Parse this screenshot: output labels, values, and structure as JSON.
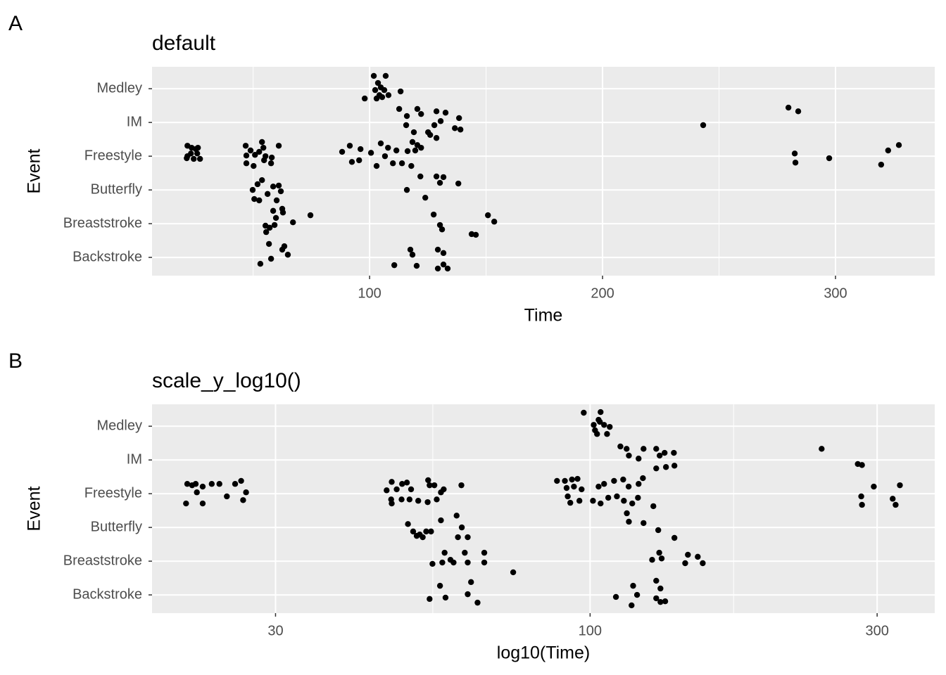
{
  "chart_data": [
    {
      "type": "scatter",
      "tag": "A",
      "title": "default",
      "x_label": "Time",
      "y_label": "Event",
      "log_x": false,
      "grid": true,
      "color": "#000000",
      "xlim": [
        6.6,
        342.6
      ],
      "xticks": [
        100,
        200,
        300
      ],
      "xminor": [
        50,
        150,
        250
      ],
      "ylim": [
        0.46,
        6.65
      ],
      "yticks": [
        {
          "value": 1,
          "label": "Backstroke"
        },
        {
          "value": 2,
          "label": "Breaststroke"
        },
        {
          "value": 3,
          "label": "Butterfly"
        },
        {
          "value": 4,
          "label": "Freestyle"
        },
        {
          "value": 5,
          "label": "IM"
        },
        {
          "value": 6,
          "label": "Medley"
        }
      ],
      "x": [
        101.8,
        106.9,
        103.6,
        104.8,
        102.4,
        106.3,
        104.2,
        108.1,
        113.3,
        97.9,
        103.0,
        105.4,
        112.7,
        120.5,
        128.7,
        132.6,
        116.0,
        122.1,
        138.4,
        115.7,
        127.8,
        130.5,
        119.0,
        125.1,
        136.6,
        139.0,
        243.2,
        279.8,
        284.0,
        21.8,
        23.6,
        25.4,
        21.8,
        23.3,
        26.0,
        27.2,
        24.5,
        21.5,
        26.3,
        46.8,
        48.9,
        53.8,
        54.4,
        61.0,
        47.1,
        50.8,
        55.3,
        47.1,
        50.2,
        54.7,
        57.7,
        58.0,
        52.6,
        88.2,
        91.5,
        96.1,
        100.6,
        104.8,
        107.9,
        111.5,
        116.3,
        118.4,
        120.5,
        122.1,
        92.4,
        95.5,
        103.0,
        106.6,
        110.0,
        113.9,
        117.9,
        119.6,
        126.0,
        128.7,
        282.5,
        282.8,
        297.3,
        319.6,
        322.6,
        327.2,
        49.8,
        51.9,
        53.8,
        50.5,
        52.6,
        58.6,
        61.0,
        61.9,
        60.1,
        56.2,
        121.8,
        128.7,
        131.7,
        138.1,
        116.0,
        130.2,
        123.9,
        58.6,
        62.5,
        59.8,
        62.8,
        74.6,
        67.1,
        55.3,
        57.1,
        55.6,
        59.2,
        127.5,
        130.2,
        131.1,
        150.8,
        153.5,
        143.8,
        145.6,
        56.8,
        63.4,
        62.5,
        64.9,
        57.7,
        53.1,
        117.5,
        118.4,
        129.3,
        131.7,
        110.6,
        120.2,
        129.3,
        131.7,
        133.5
      ],
      "y": [
        6.38,
        6.38,
        6.17,
        6.04,
        5.96,
        5.96,
        5.81,
        5.81,
        5.92,
        5.71,
        5.71,
        5.75,
        5.4,
        5.4,
        5.33,
        5.29,
        5.19,
        5.25,
        5.13,
        4.92,
        4.92,
        5.04,
        4.71,
        4.71,
        4.83,
        4.79,
        4.92,
        5.44,
        5.33,
        4.31,
        4.25,
        4.21,
        4.0,
        4.08,
        4.08,
        3.92,
        3.92,
        3.94,
        4.25,
        4.31,
        4.17,
        4.42,
        4.25,
        4.31,
        4.02,
        4.04,
        4.0,
        3.79,
        3.71,
        3.88,
        3.79,
        3.96,
        4.13,
        4.13,
        4.31,
        4.21,
        4.1,
        4.38,
        4.25,
        4.17,
        4.15,
        4.42,
        4.33,
        4.25,
        3.83,
        3.88,
        3.71,
        4.0,
        3.79,
        3.79,
        3.71,
        4.17,
        4.63,
        4.54,
        4.08,
        3.81,
        3.94,
        3.75,
        4.17,
        4.33,
        3.0,
        3.17,
        3.29,
        2.73,
        2.69,
        3.1,
        3.13,
        2.96,
        2.69,
        2.88,
        3.4,
        3.4,
        3.38,
        3.19,
        3.0,
        3.21,
        2.77,
        2.38,
        2.44,
        2.17,
        2.33,
        2.25,
        2.04,
        1.94,
        1.88,
        1.75,
        1.96,
        2.27,
        1.96,
        1.83,
        2.25,
        2.06,
        1.69,
        1.67,
        1.4,
        1.33,
        1.23,
        1.08,
        0.96,
        0.81,
        1.23,
        1.08,
        1.23,
        1.13,
        0.77,
        0.75,
        0.67,
        0.79,
        0.67
      ]
    },
    {
      "type": "scatter",
      "tag": "B",
      "title": "scale_y_log10()",
      "x_label": "log10(Time)",
      "y_label": "Event",
      "log_x": true,
      "grid": true,
      "color": "#000000",
      "xlim": [
        18.7,
        374
      ],
      "xticks": [
        30,
        100,
        300
      ],
      "xminor": [
        54.77,
        173.21
      ],
      "ylim": [
        0.46,
        6.65
      ],
      "yticks": [
        {
          "value": 1,
          "label": "Backstroke"
        },
        {
          "value": 2,
          "label": "Breaststroke"
        },
        {
          "value": 3,
          "label": "Butterfly"
        },
        {
          "value": 4,
          "label": "Freestyle"
        },
        {
          "value": 5,
          "label": "IM"
        },
        {
          "value": 6,
          "label": "Medley"
        }
      ],
      "x": [
        97.6,
        104.1,
        103.3,
        101.4,
        105.5,
        107.8,
        101.9,
        102.7,
        106.7,
        103.8,
        112.3,
        115.0,
        122.7,
        128.8,
        137.8,
        116.0,
        120.4,
        130.5,
        133.0,
        128.8,
        133.7,
        138.1,
        242.6,
        278.6,
        283.1,
        21.4,
        21.8,
        22.1,
        22.7,
        23.5,
        24.2,
        25.7,
        26.3,
        26.8,
        24.9,
        26.5,
        21.3,
        22.7,
        22.2,
        45.9,
        46.8,
        47.7,
        48.7,
        49.6,
        50.4,
        53.8,
        54.1,
        55.1,
        57.1,
        61.1,
        46.7,
        46.8,
        48.6,
        50.1,
        51.8,
        53.7,
        55.6,
        56.5,
        88.1,
        90.8,
        93.3,
        95.3,
        91.4,
        94.0,
        96.8,
        103.3,
        105.5,
        109.6,
        113.5,
        115.9,
        120.4,
        122.4,
        91.8,
        92.7,
        96.0,
        101.1,
        104.1,
        107.2,
        110.8,
        113.8,
        117.5,
        120.1,
        296.2,
        327.3,
        282.3,
        283.1,
        318.4,
        322.0,
        49.8,
        50.8,
        52.1,
        53.4,
        54.4,
        51.5,
        52.7,
        60.0,
        56.5,
        61.2,
        60.3,
        62.6,
        115.1,
        116.0,
        122.7,
        127.4,
        129.8,
        138.1,
        57.3,
        61.9,
        66.7,
        54.7,
        56.8,
        58.6,
        59.3,
        62.6,
        66.7,
        74.5,
        130.3,
        126.8,
        131.5,
        145.4,
        151.0,
        153.9,
        143.9,
        56.3,
        63.4,
        54.1,
        57.5,
        62.6,
        65.0,
        110.4,
        117.9,
        119.7,
        117.2,
        128.8,
        130.9,
        128.8,
        130.9,
        133.3
      ],
      "y": [
        6.4,
        6.42,
        6.19,
        6.04,
        6.04,
        5.98,
        5.88,
        5.77,
        5.77,
        6.13,
        5.4,
        5.33,
        5.33,
        5.33,
        5.21,
        5.13,
        5.04,
        5.13,
        5.21,
        4.75,
        4.79,
        4.83,
        5.33,
        4.88,
        4.85,
        4.29,
        4.25,
        4.29,
        4.21,
        4.29,
        4.29,
        4.29,
        4.38,
        4.04,
        3.92,
        3.81,
        3.71,
        3.71,
        4.04,
        4.1,
        4.35,
        4.13,
        4.29,
        4.33,
        4.13,
        4.4,
        4.25,
        4.25,
        4.13,
        4.25,
        3.83,
        3.71,
        3.83,
        3.83,
        3.79,
        3.75,
        3.83,
        4.04,
        4.38,
        4.38,
        4.42,
        4.44,
        4.17,
        4.21,
        4.13,
        4.21,
        4.29,
        4.38,
        4.42,
        4.21,
        4.29,
        4.46,
        3.92,
        3.73,
        3.79,
        3.79,
        3.71,
        3.88,
        3.92,
        3.79,
        3.71,
        3.88,
        4.21,
        4.25,
        3.92,
        3.67,
        3.85,
        3.67,
        3.1,
        2.88,
        2.79,
        2.88,
        2.88,
        2.75,
        2.71,
        3.35,
        3.21,
        3.0,
        2.71,
        2.71,
        3.42,
        3.17,
        3.13,
        3.63,
        2.92,
        2.69,
        2.25,
        2.25,
        2.25,
        1.92,
        1.96,
        2.04,
        1.96,
        1.96,
        1.96,
        1.67,
        2.25,
        2.04,
        2.08,
        2.19,
        2.13,
        1.94,
        1.94,
        1.27,
        1.38,
        0.88,
        0.92,
        1.02,
        0.77,
        0.94,
        1.27,
        1.0,
        0.69,
        1.42,
        1.19,
        0.9,
        0.79,
        0.81
      ]
    }
  ]
}
